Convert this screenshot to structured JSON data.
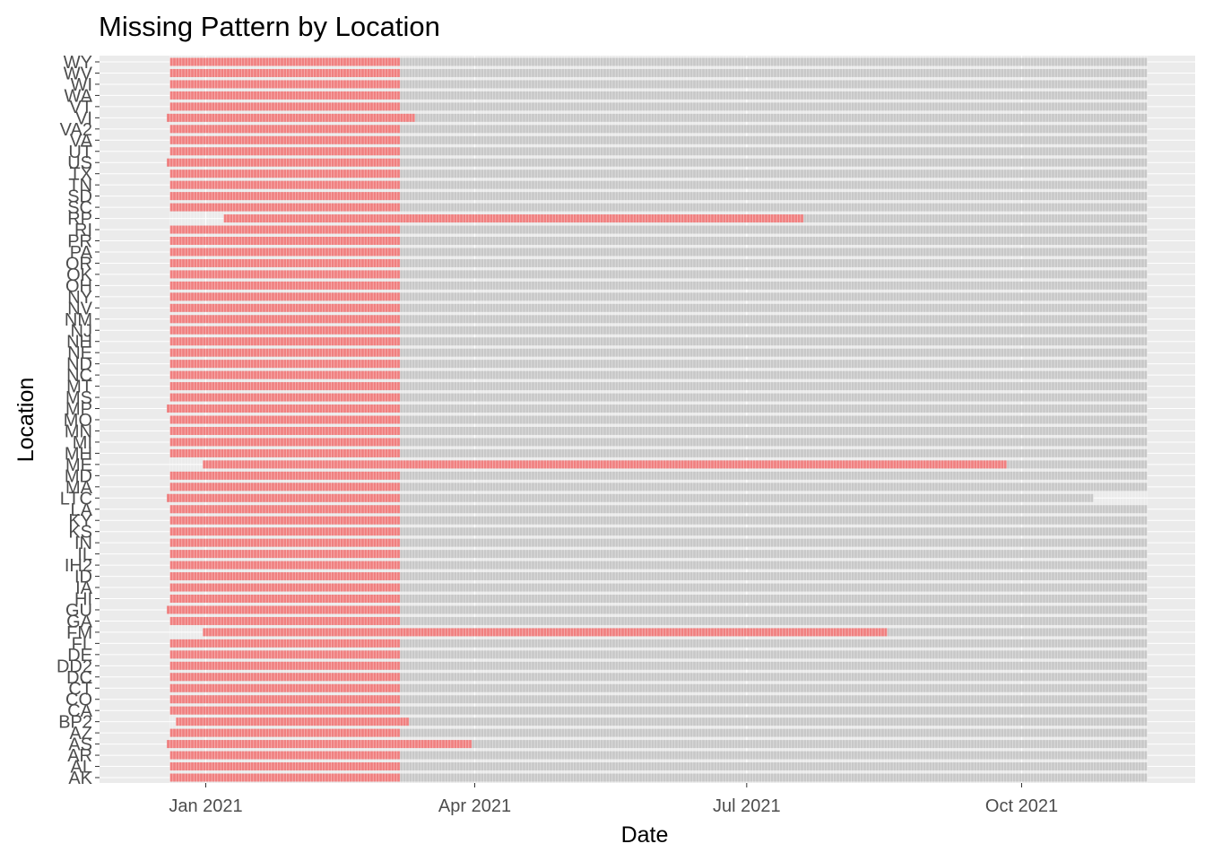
{
  "chart_data": {
    "type": "heatmap",
    "title": "Missing Pattern by Location",
    "xlabel": "Date",
    "ylabel": "Location",
    "x_range": [
      "2020-12-20",
      "2021-11-12"
    ],
    "x_ticks": [
      {
        "date": "2021-01-01",
        "label": "Jan 2021"
      },
      {
        "date": "2021-04-01",
        "label": "Apr 2021"
      },
      {
        "date": "2021-07-01",
        "label": "Jul 2021"
      },
      {
        "date": "2021-10-01",
        "label": "Oct 2021"
      }
    ],
    "locations": [
      "AK",
      "AL",
      "AR",
      "AS",
      "AZ",
      "BP2",
      "CA",
      "CO",
      "CT",
      "DC",
      "DD2",
      "DE",
      "FL",
      "FM",
      "GA",
      "GU",
      "HI",
      "IA",
      "ID",
      "IH2",
      "IL",
      "IN",
      "KS",
      "KY",
      "LA",
      "LTC",
      "MA",
      "MD",
      "ME",
      "MH",
      "MI",
      "MN",
      "MO",
      "MP",
      "MS",
      "MT",
      "NC",
      "ND",
      "NE",
      "NH",
      "NJ",
      "NM",
      "NV",
      "NY",
      "OH",
      "OK",
      "OR",
      "PA",
      "PR",
      "RI",
      "RP",
      "SC",
      "SD",
      "TN",
      "TX",
      "US",
      "UT",
      "VA",
      "VA2",
      "VI",
      "VT",
      "WA",
      "WI",
      "WV",
      "WY"
    ],
    "legend": "none",
    "colors": {
      "missing": "#f08080",
      "present": "#c8c8c8",
      "no_record": "#ebebeb",
      "panel_background": "#ebebeb",
      "grid": "#ffffff",
      "tick_text": "#4d4d4d"
    },
    "default_pattern": {
      "record_start": "2020-12-20",
      "record_end": "2021-11-12",
      "missing_start": "2020-12-20",
      "missing_end": "2021-03-07"
    },
    "exceptions": {
      "AS": {
        "record_start": "2020-12-19",
        "missing_start": "2020-12-19",
        "missing_end": "2021-03-31"
      },
      "BP2": {
        "record_start": "2020-12-22",
        "missing_start": "2020-12-22",
        "missing_end": "2021-03-10"
      },
      "GU": {
        "record_start": "2020-12-19",
        "missing_start": "2020-12-19",
        "missing_end": "2021-03-07"
      },
      "FM": {
        "record_start": "2020-12-31",
        "missing_start": "2020-12-31",
        "missing_end": "2021-08-17"
      },
      "LTC": {
        "record_start": "2020-12-19",
        "record_end": "2021-10-25",
        "missing_start": "2020-12-19",
        "missing_end": "2021-03-07"
      },
      "ME": {
        "record_start": "2020-12-31",
        "missing_start": "2020-12-31",
        "missing_end": "2021-09-26"
      },
      "MP": {
        "record_start": "2020-12-19",
        "missing_start": "2020-12-19",
        "missing_end": "2021-03-07"
      },
      "RP": {
        "record_start": "2021-01-07",
        "missing_start": "2021-01-07",
        "missing_end": "2021-07-20"
      },
      "US": {
        "record_start": "2020-12-19",
        "missing_start": "2020-12-19",
        "missing_end": "2021-03-07"
      },
      "VI": {
        "record_start": "2020-12-19",
        "missing_start": "2020-12-19",
        "missing_end": "2021-03-12"
      }
    }
  }
}
